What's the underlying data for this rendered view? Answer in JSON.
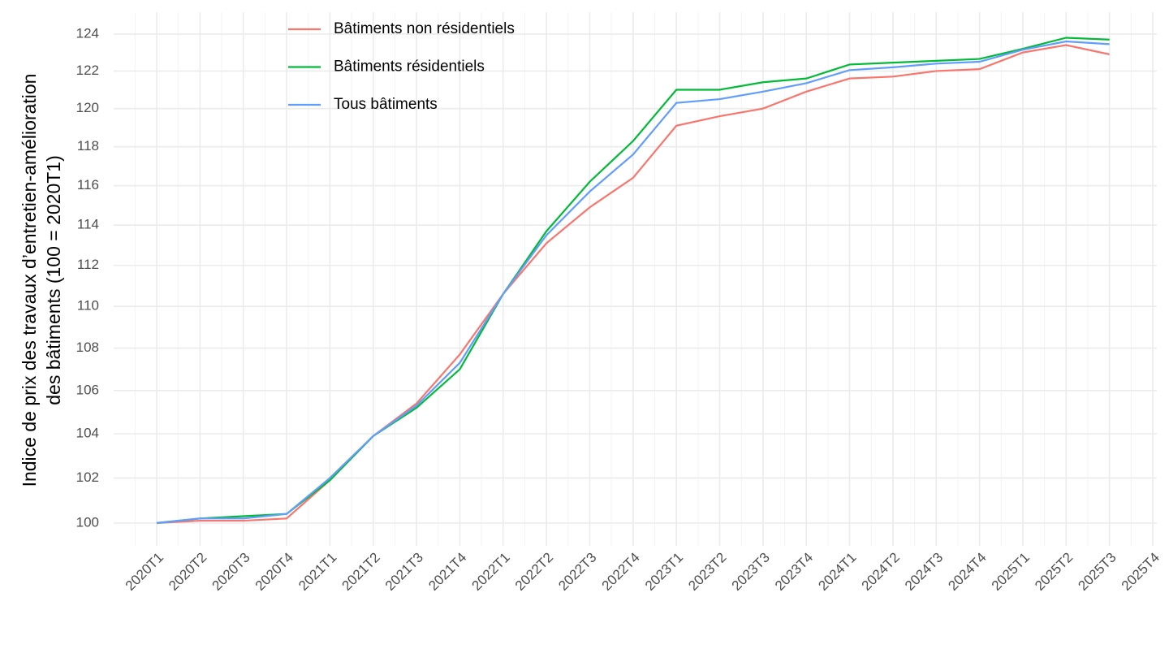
{
  "chart_data": {
    "type": "line",
    "ylabel": [
      "Indice de prix des travaux d’entretien-amélioration",
      "des bâtiments (100 = 2020T1)"
    ],
    "categories": [
      "2020T1",
      "2020T2",
      "2020T3",
      "2020T4",
      "2021T1",
      "2021T2",
      "2021T3",
      "2021T4",
      "2022T1",
      "2022T2",
      "2022T3",
      "2022T4",
      "2023T1",
      "2023T2",
      "2023T3",
      "2023T4",
      "2024T1",
      "2024T2",
      "2024T3",
      "2024T4",
      "2025T1",
      "2025T2",
      "2025T3",
      "2025T4"
    ],
    "series": [
      {
        "name": "Bâtiments non résidentiels",
        "color": "#f8766d",
        "values": [
          100,
          100.1,
          100.1,
          100.2,
          101.9,
          103.9,
          105.4,
          107.7,
          110.6,
          113.1,
          114.9,
          116.4,
          119.1,
          119.6,
          120.0,
          120.9,
          121.6,
          121.7,
          122.0,
          122.1,
          123.0,
          123.4,
          122.9,
          null
        ]
      },
      {
        "name": "Bâtiments résidentiels",
        "color": "#00ba38",
        "values": [
          100,
          100.2,
          100.3,
          100.4,
          101.9,
          103.9,
          105.2,
          107.0,
          110.6,
          113.7,
          116.2,
          118.3,
          121.0,
          121.0,
          121.4,
          121.6,
          122.35,
          122.45,
          122.55,
          122.65,
          123.2,
          123.8,
          123.7,
          null
        ]
      },
      {
        "name": "Tous bâtiments",
        "color": "#619cff",
        "values": [
          100,
          100.2,
          100.2,
          100.4,
          102.0,
          103.9,
          105.3,
          107.3,
          110.6,
          113.5,
          115.7,
          117.6,
          120.3,
          120.5,
          120.9,
          121.35,
          122.05,
          122.2,
          122.4,
          122.5,
          123.15,
          123.6,
          123.45,
          null
        ]
      }
    ],
    "ylim": [
      99,
      125.2
    ],
    "yticks": [
      100,
      102,
      104,
      106,
      108,
      110,
      112,
      114,
      116,
      118,
      120,
      122,
      124
    ],
    "log_y": true,
    "grid": true,
    "legend": "top-left"
  }
}
